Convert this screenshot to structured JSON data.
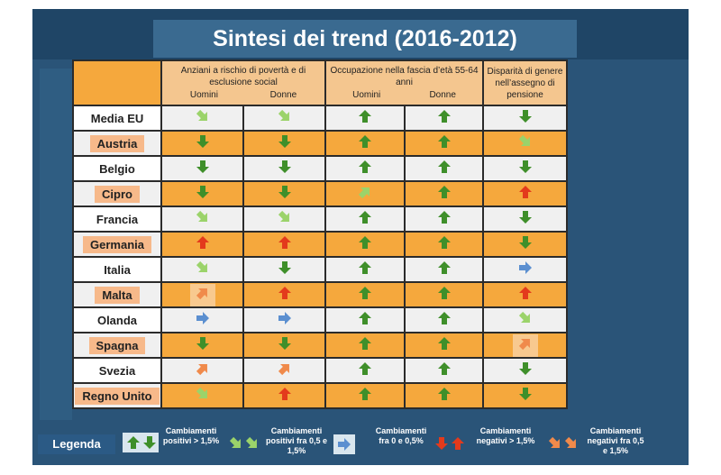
{
  "title": "Sintesi dei trend (2016-2012)",
  "headers": {
    "col1": "Anziani a rischio di povertà e di esclusione social",
    "col1_m": "Uomini",
    "col1_f": "Donne",
    "col2": "Occupazione nella fascia d’età 55-64 anni",
    "col2_m": "Uomini",
    "col2_f": "Donne",
    "col3": "Disparità di genere nell’assegno di pensione"
  },
  "rows": [
    {
      "country": "Media EU",
      "vals": [
        "lg-dr",
        "lg-dr",
        "up-g",
        "up-g",
        "dn-g"
      ]
    },
    {
      "country": "Austria",
      "vals": [
        "dn-g",
        "dn-g",
        "up-g",
        "up-g",
        "lg-dr"
      ]
    },
    {
      "country": "Belgio",
      "vals": [
        "dn-g",
        "dn-g",
        "up-g",
        "up-g",
        "dn-g"
      ]
    },
    {
      "country": "Cipro",
      "vals": [
        "dn-g",
        "dn-g",
        "lg-ur",
        "up-g",
        "up-r"
      ]
    },
    {
      "country": "Francia",
      "vals": [
        "lg-dr",
        "lg-dr",
        "up-g",
        "up-g",
        "dn-g"
      ]
    },
    {
      "country": "Germania",
      "vals": [
        "up-r",
        "up-r",
        "up-g",
        "up-g",
        "dn-g"
      ]
    },
    {
      "country": "Italia",
      "vals": [
        "lg-dr",
        "dn-g",
        "up-g",
        "up-g",
        "rt-b"
      ]
    },
    {
      "country": "Malta",
      "vals": [
        "or-ur",
        "up-r",
        "up-g",
        "up-g",
        "up-r"
      ]
    },
    {
      "country": "Olanda",
      "vals": [
        "rt-b",
        "rt-b",
        "up-g",
        "up-g",
        "lg-dr"
      ]
    },
    {
      "country": "Spagna",
      "vals": [
        "dn-g",
        "dn-g",
        "up-g",
        "up-g",
        "or-ur"
      ]
    },
    {
      "country": "Svezia",
      "vals": [
        "or-ur",
        "or-ur",
        "up-g",
        "up-g",
        "dn-g"
      ]
    },
    {
      "country": "Regno Unito",
      "vals": [
        "lg-dr",
        "up-r",
        "up-g",
        "up-g",
        "dn-g"
      ]
    }
  ],
  "legend": {
    "label": "Legenda",
    "pos_big": "Cambiamenti positivi > 1,5%",
    "pos_small": "Cambiamenti positivi fra 0,5 e 1,5%",
    "neutral": "Cambiamenti fra 0 e 0,5%",
    "neg_big": "Cambiamenti negativi > 1,5%",
    "neg_small": "Cambiamenti negativi fra 0,5 e 1,5%"
  },
  "colors": {
    "dark_green": "#3f8f2a",
    "light_green": "#9bd36a",
    "red": "#e33a1c",
    "orange": "#f08a4b",
    "blue": "#5b8fd0"
  }
}
